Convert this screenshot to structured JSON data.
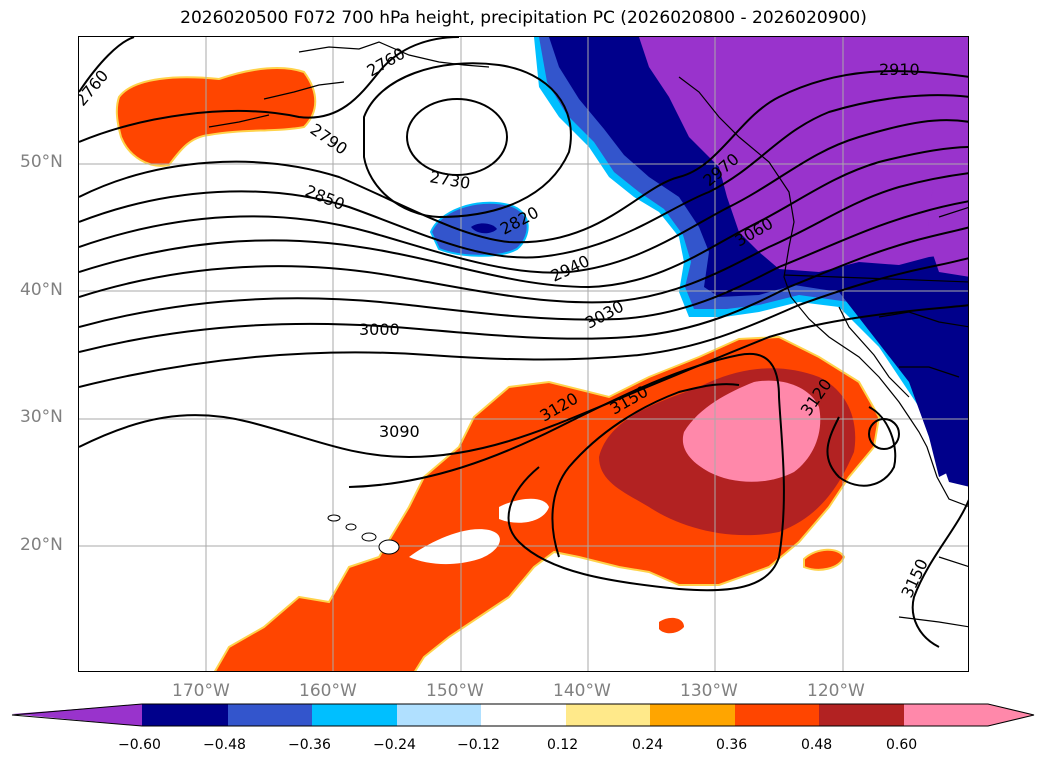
{
  "title": "2026020500 F072 700 hPa height, precipitation PC (2026020800 - 2026020900)",
  "lat_labels": [
    "50°N",
    "40°N",
    "30°N",
    "20°N"
  ],
  "lon_labels": [
    "170°W",
    "160°W",
    "150°W",
    "140°W",
    "130°W",
    "120°W"
  ],
  "contour_labels": [
    "2760",
    "2760",
    "2790",
    "2850",
    "2730",
    "2820",
    "2910",
    "2970",
    "3060",
    "2940",
    "3030",
    "3000",
    "3120",
    "3150",
    "3090",
    "3120",
    "3150"
  ],
  "colorbar": {
    "ticks": [
      "−0.60",
      "−0.48",
      "−0.36",
      "−0.24",
      "−0.12",
      "0.12",
      "0.24",
      "0.36",
      "0.48",
      "0.60"
    ],
    "colors": [
      "#9933cc",
      "#00008b",
      "#3355cc",
      "#00bfff",
      "#b0e0ff",
      "#ffffff",
      "#ffe98a",
      "#ffa500",
      "#ff4500",
      "#b22222",
      "#ff88aa",
      "#ff88aa"
    ]
  }
}
